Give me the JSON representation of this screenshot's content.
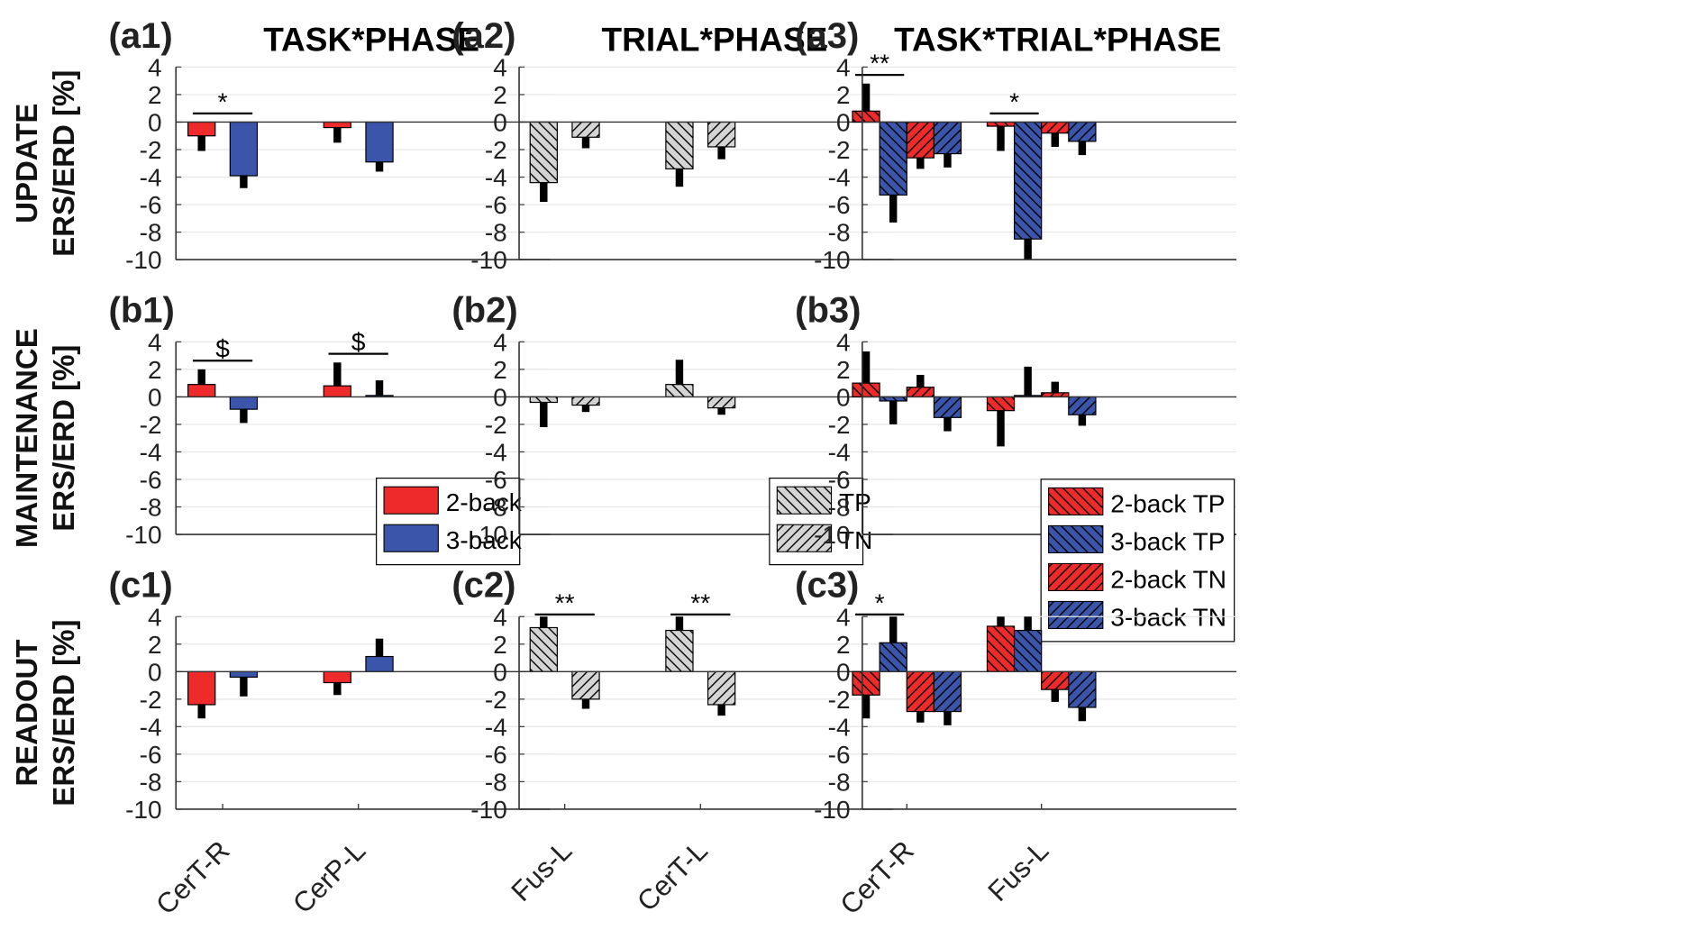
{
  "colors": {
    "red": "#ee2a2a",
    "blue": "#3a55aa",
    "gray": "#d4d4d4",
    "error": "#000000",
    "grid": "#e6e6e6"
  },
  "chart_data": [
    {
      "type": "bar",
      "panel": "(a1)",
      "title": "TASK*PHASE",
      "ylabel": "UPDATE ERS/ERD [%]",
      "ylim": [
        -10,
        4
      ],
      "yticks": [
        4,
        2,
        0,
        -2,
        -4,
        -6,
        -8,
        -10
      ],
      "grid": true,
      "categories": [
        "CerT-R",
        "CerP-L"
      ],
      "series": [
        {
          "name": "2-back",
          "color": "red",
          "hatch": "none",
          "values": [
            -1.0,
            -0.4
          ],
          "err": [
            1.1,
            1.1
          ]
        },
        {
          "name": "3-back",
          "color": "blue",
          "hatch": "none",
          "values": [
            -3.9,
            -2.9
          ],
          "err": [
            0.9,
            0.7
          ]
        }
      ],
      "significance": [
        {
          "category": 0,
          "label": "*"
        }
      ]
    },
    {
      "type": "bar",
      "panel": "(a2)",
      "title": "TRIAL*PHASE",
      "ylabel": "",
      "ylim": [
        -10,
        4
      ],
      "yticks": [
        4,
        2,
        0,
        -2,
        -4,
        -6,
        -8,
        -10
      ],
      "grid": true,
      "categories": [
        "Fus-L",
        "CerT-L"
      ],
      "series": [
        {
          "name": "TP",
          "color": "gray",
          "hatch": "back",
          "values": [
            -4.4,
            -3.4
          ],
          "err": [
            1.4,
            1.3
          ]
        },
        {
          "name": "TN",
          "color": "gray",
          "hatch": "fwd",
          "values": [
            -1.1,
            -1.8
          ],
          "err": [
            0.8,
            0.9
          ]
        }
      ],
      "significance": []
    },
    {
      "type": "bar",
      "panel": "(a3)",
      "title": "TASK*TRIAL*PHASE",
      "ylabel": "",
      "ylim": [
        -10,
        4
      ],
      "yticks": [
        4,
        2,
        0,
        -2,
        -4,
        -6,
        -8,
        -10
      ],
      "grid": true,
      "categories": [
        "CerT-R",
        "Fus-L"
      ],
      "series": [
        {
          "name": "2-back TP",
          "color": "red",
          "hatch": "back",
          "values": [
            0.8,
            -0.3
          ],
          "err": [
            2.0,
            1.8
          ]
        },
        {
          "name": "3-back TP",
          "color": "blue",
          "hatch": "back",
          "values": [
            -5.3,
            -8.5
          ],
          "err": [
            2.0,
            1.5
          ]
        },
        {
          "name": "2-back TN",
          "color": "red",
          "hatch": "fwd",
          "values": [
            -2.6,
            -0.8
          ],
          "err": [
            0.8,
            1.0
          ]
        },
        {
          "name": "3-back TN",
          "color": "blue",
          "hatch": "fwd",
          "values": [
            -2.3,
            -1.4
          ],
          "err": [
            1.0,
            1.0
          ]
        }
      ],
      "significance": [
        {
          "category": 0,
          "label": "**"
        },
        {
          "category": 1,
          "label": "*"
        }
      ]
    },
    {
      "type": "bar",
      "panel": "(b1)",
      "title": "",
      "ylabel": "MAINTENANCE ERS/ERD [%]",
      "ylim": [
        -10,
        4
      ],
      "yticks": [
        4,
        2,
        0,
        -2,
        -4,
        -6,
        -8,
        -10
      ],
      "grid": true,
      "categories": [
        "CerT-R",
        "CerP-L"
      ],
      "series": [
        {
          "name": "2-back",
          "color": "red",
          "hatch": "none",
          "values": [
            0.9,
            0.8
          ],
          "err": [
            1.1,
            1.7
          ]
        },
        {
          "name": "3-back",
          "color": "blue",
          "hatch": "none",
          "values": [
            -0.9,
            0.1
          ],
          "err": [
            1.0,
            1.1
          ]
        }
      ],
      "significance": [
        {
          "category": 0,
          "label": "$"
        },
        {
          "category": 1,
          "label": "$"
        }
      ],
      "legend": {
        "position": "bottom-right",
        "entries": [
          "2-back",
          "3-back"
        ]
      }
    },
    {
      "type": "bar",
      "panel": "(b2)",
      "title": "",
      "ylabel": "",
      "ylim": [
        -10,
        4
      ],
      "yticks": [
        4,
        2,
        0,
        -2,
        -4,
        -6,
        -8,
        -10
      ],
      "grid": true,
      "categories": [
        "Fus-L",
        "CerT-L"
      ],
      "series": [
        {
          "name": "TP",
          "color": "gray",
          "hatch": "back",
          "values": [
            -0.4,
            0.9
          ],
          "err": [
            1.8,
            1.8
          ]
        },
        {
          "name": "TN",
          "color": "gray",
          "hatch": "fwd",
          "values": [
            -0.6,
            -0.8
          ],
          "err": [
            0.5,
            0.5
          ]
        }
      ],
      "significance": [],
      "legend": {
        "position": "bottom-right",
        "entries": [
          "TP",
          "TN"
        ]
      }
    },
    {
      "type": "bar",
      "panel": "(b3)",
      "title": "",
      "ylabel": "",
      "ylim": [
        -10,
        4
      ],
      "yticks": [
        4,
        2,
        0,
        -2,
        -4,
        -6,
        -8,
        -10
      ],
      "grid": true,
      "categories": [
        "CerT-R",
        "Fus-L"
      ],
      "series": [
        {
          "name": "2-back TP",
          "color": "red",
          "hatch": "back",
          "values": [
            1.0,
            -1.0
          ],
          "err": [
            2.3,
            2.6
          ]
        },
        {
          "name": "3-back TP",
          "color": "blue",
          "hatch": "back",
          "values": [
            -0.3,
            0.1
          ],
          "err": [
            1.7,
            2.1
          ]
        },
        {
          "name": "2-back TN",
          "color": "red",
          "hatch": "fwd",
          "values": [
            0.7,
            0.3
          ],
          "err": [
            0.9,
            0.8
          ]
        },
        {
          "name": "3-back TN",
          "color": "blue",
          "hatch": "fwd",
          "values": [
            -1.5,
            -1.3
          ],
          "err": [
            1.0,
            0.8
          ]
        }
      ],
      "significance": [],
      "legend": {
        "position": "bottom-right",
        "entries": [
          "2-back TP",
          "3-back TP",
          "2-back TN",
          "3-back TN"
        ]
      }
    },
    {
      "type": "bar",
      "panel": "(c1)",
      "title": "",
      "ylabel": "READOUT ERS/ERD [%]",
      "ylim": [
        -10,
        4
      ],
      "yticks": [
        4,
        2,
        0,
        -2,
        -4,
        -6,
        -8,
        -10
      ],
      "grid": true,
      "categories": [
        "CerT-R",
        "CerP-L"
      ],
      "series": [
        {
          "name": "2-back",
          "color": "red",
          "hatch": "none",
          "values": [
            -2.4,
            -0.8
          ],
          "err": [
            1.0,
            0.9
          ]
        },
        {
          "name": "3-back",
          "color": "blue",
          "hatch": "none",
          "values": [
            -0.4,
            1.1
          ],
          "err": [
            1.4,
            1.3
          ]
        }
      ],
      "significance": []
    },
    {
      "type": "bar",
      "panel": "(c2)",
      "title": "",
      "ylabel": "",
      "ylim": [
        -10,
        4
      ],
      "yticks": [
        4,
        2,
        0,
        -2,
        -4,
        -6,
        -8,
        -10
      ],
      "grid": true,
      "categories": [
        "Fus-L",
        "CerT-L"
      ],
      "series": [
        {
          "name": "TP",
          "color": "gray",
          "hatch": "back",
          "values": [
            3.2,
            3.0
          ],
          "err": [
            0.8,
            1.0
          ]
        },
        {
          "name": "TN",
          "color": "gray",
          "hatch": "fwd",
          "values": [
            -2.0,
            -2.4
          ],
          "err": [
            0.7,
            0.8
          ]
        }
      ],
      "significance": [
        {
          "category": 0,
          "label": "**"
        },
        {
          "category": 1,
          "label": "**"
        }
      ]
    },
    {
      "type": "bar",
      "panel": "(c3)",
      "title": "",
      "ylabel": "",
      "ylim": [
        -10,
        4
      ],
      "yticks": [
        4,
        2,
        0,
        -2,
        -4,
        -6,
        -8,
        -10
      ],
      "grid": true,
      "categories": [
        "CerT-R",
        "Fus-L"
      ],
      "series": [
        {
          "name": "2-back TP",
          "color": "red",
          "hatch": "back",
          "values": [
            -1.7,
            3.3
          ],
          "err": [
            1.7,
            0.8
          ]
        },
        {
          "name": "3-back TP",
          "color": "blue",
          "hatch": "back",
          "values": [
            2.1,
            3.0
          ],
          "err": [
            2.0,
            1.0
          ]
        },
        {
          "name": "2-back TN",
          "color": "red",
          "hatch": "fwd",
          "values": [
            -2.9,
            -1.3
          ],
          "err": [
            0.8,
            0.9
          ]
        },
        {
          "name": "3-back TN",
          "color": "blue",
          "hatch": "fwd",
          "values": [
            -2.9,
            -2.6
          ],
          "err": [
            1.0,
            1.0
          ]
        }
      ],
      "significance": [
        {
          "category": 0,
          "label": "*"
        }
      ]
    }
  ]
}
